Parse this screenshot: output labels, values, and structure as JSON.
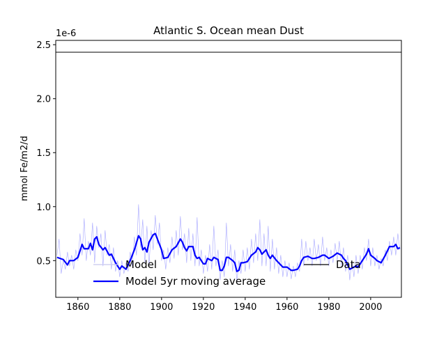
{
  "chart_data": {
    "type": "line",
    "title": "Atlantic S. Ocean  mean Dust",
    "y_label": "mmol Fe/m2/d",
    "y_offset_label": "1e-6",
    "xlim": [
      1849.4,
      2014.7
    ],
    "xticks": [
      1860,
      1880,
      1900,
      1920,
      1940,
      1960,
      1980,
      2000
    ],
    "ylim": [
      0.16,
      2.54
    ],
    "yticks": [
      0.5,
      {
        "value": 1.0,
        "label": "1.0"
      },
      1.5,
      {
        "value": 2.0,
        "label": "2.0"
      },
      2.5
    ],
    "legend": "lower center",
    "grid": false,
    "series": [
      {
        "name": "Model",
        "color": "#8080ff",
        "width": 0.6,
        "x": [
          1850,
          1851,
          1852,
          1853,
          1854,
          1855,
          1856,
          1857,
          1858,
          1859,
          1860,
          1861,
          1862,
          1863,
          1864,
          1865,
          1866,
          1867,
          1868,
          1869,
          1870,
          1871,
          1872,
          1873,
          1874,
          1875,
          1876,
          1877,
          1878,
          1879,
          1880,
          1881,
          1882,
          1883,
          1884,
          1885,
          1886,
          1887,
          1888,
          1889,
          1890,
          1891,
          1892,
          1893,
          1894,
          1895,
          1896,
          1897,
          1898,
          1899,
          1900,
          1901,
          1902,
          1903,
          1904,
          1905,
          1906,
          1907,
          1908,
          1909,
          1910,
          1911,
          1912,
          1913,
          1914,
          1915,
          1916,
          1917,
          1918,
          1919,
          1920,
          1921,
          1922,
          1923,
          1924,
          1925,
          1926,
          1927,
          1928,
          1929,
          1930,
          1931,
          1932,
          1933,
          1934,
          1935,
          1936,
          1937,
          1938,
          1939,
          1940,
          1941,
          1942,
          1943,
          1944,
          1945,
          1946,
          1947,
          1948,
          1949,
          1950,
          1951,
          1952,
          1953,
          1954,
          1955,
          1956,
          1957,
          1958,
          1959,
          1960,
          1961,
          1962,
          1963,
          1964,
          1965,
          1966,
          1967,
          1968,
          1969,
          1970,
          1971,
          1972,
          1973,
          1974,
          1975,
          1976,
          1977,
          1978,
          1979,
          1980,
          1981,
          1982,
          1983,
          1984,
          1985,
          1986,
          1987,
          1988,
          1989,
          1990,
          1991,
          1992,
          1993,
          1994,
          1995,
          1996,
          1997,
          1998,
          1999,
          2000,
          2001,
          2002,
          2003,
          2004,
          2005,
          2006,
          2007,
          2008,
          2009,
          2010,
          2011,
          2012,
          2013,
          2014
        ],
        "values": [
          0.55,
          0.7,
          0.38,
          0.5,
          0.42,
          0.58,
          0.45,
          0.55,
          0.42,
          0.6,
          0.5,
          0.75,
          0.55,
          0.89,
          0.5,
          0.68,
          0.55,
          0.85,
          0.48,
          0.82,
          0.62,
          0.75,
          0.45,
          0.78,
          0.55,
          0.65,
          0.42,
          0.62,
          0.4,
          0.5,
          0.35,
          0.5,
          0.38,
          0.48,
          0.4,
          0.58,
          0.45,
          0.72,
          0.55,
          1.02,
          0.62,
          0.88,
          0.48,
          0.82,
          0.45,
          0.78,
          0.6,
          0.92,
          0.65,
          0.85,
          0.5,
          0.6,
          0.42,
          0.62,
          0.48,
          0.72,
          0.52,
          0.78,
          0.55,
          0.91,
          0.6,
          0.75,
          0.48,
          0.8,
          0.5,
          0.75,
          0.45,
          0.9,
          0.45,
          0.6,
          0.38,
          0.55,
          0.4,
          0.65,
          0.42,
          0.82,
          0.45,
          0.6,
          0.32,
          0.5,
          0.35,
          0.85,
          0.45,
          0.65,
          0.4,
          0.6,
          0.3,
          0.5,
          0.38,
          0.6,
          0.4,
          0.62,
          0.42,
          0.7,
          0.48,
          0.75,
          0.5,
          0.88,
          0.45,
          0.75,
          0.45,
          0.82,
          0.4,
          0.7,
          0.42,
          0.62,
          0.38,
          0.55,
          0.35,
          0.5,
          0.35,
          0.48,
          0.33,
          0.45,
          0.35,
          0.48,
          0.4,
          0.7,
          0.45,
          0.68,
          0.5,
          0.62,
          0.45,
          0.7,
          0.5,
          0.65,
          0.45,
          0.72,
          0.5,
          0.62,
          0.45,
          0.6,
          0.48,
          0.66,
          0.5,
          0.68,
          0.45,
          0.62,
          0.4,
          0.55,
          0.32,
          0.5,
          0.35,
          0.55,
          0.38,
          0.55,
          0.42,
          0.62,
          0.5,
          0.7,
          0.45,
          0.62,
          0.45,
          0.55,
          0.42,
          0.52,
          0.45,
          0.6,
          0.5,
          0.68,
          0.55,
          0.72,
          0.55,
          0.75,
          0.6
        ]
      },
      {
        "name": "Model 5yr moving average",
        "color": "#0000ff",
        "width": 2.2,
        "x": [
          1850,
          1853,
          1855,
          1856,
          1858,
          1860,
          1862,
          1863,
          1865,
          1866,
          1867,
          1868,
          1869,
          1870,
          1872,
          1873,
          1875,
          1876,
          1878,
          1880,
          1881,
          1883,
          1885,
          1887,
          1889,
          1890,
          1891,
          1892,
          1893,
          1894,
          1896,
          1897,
          1898,
          1900,
          1901,
          1903,
          1905,
          1907,
          1909,
          1910,
          1911,
          1912,
          1913,
          1915,
          1916,
          1917,
          1918,
          1920,
          1921,
          1922,
          1924,
          1925,
          1927,
          1928,
          1929,
          1930,
          1931,
          1932,
          1934,
          1935,
          1936,
          1937,
          1938,
          1939,
          1941,
          1943,
          1945,
          1946,
          1947,
          1948,
          1949,
          1950,
          1951,
          1952,
          1953,
          1955,
          1956,
          1958,
          1960,
          1962,
          1963,
          1965,
          1966,
          1967,
          1968,
          1970,
          1972,
          1973,
          1975,
          1977,
          1978,
          1980,
          1982,
          1984,
          1986,
          1987,
          1988,
          1989,
          1990,
          1991,
          1993,
          1994,
          1996,
          1998,
          1999,
          2000,
          2002,
          2003,
          2005,
          2007,
          2009,
          2011,
          2012,
          2013,
          2014
        ],
        "values": [
          0.53,
          0.51,
          0.46,
          0.5,
          0.5,
          0.53,
          0.65,
          0.61,
          0.61,
          0.66,
          0.6,
          0.7,
          0.72,
          0.65,
          0.6,
          0.62,
          0.55,
          0.56,
          0.48,
          0.42,
          0.45,
          0.42,
          0.5,
          0.6,
          0.73,
          0.7,
          0.6,
          0.62,
          0.58,
          0.67,
          0.74,
          0.75,
          0.7,
          0.6,
          0.52,
          0.53,
          0.6,
          0.63,
          0.7,
          0.67,
          0.62,
          0.59,
          0.63,
          0.63,
          0.55,
          0.52,
          0.53,
          0.47,
          0.47,
          0.52,
          0.5,
          0.53,
          0.51,
          0.41,
          0.41,
          0.45,
          0.53,
          0.53,
          0.5,
          0.48,
          0.4,
          0.41,
          0.48,
          0.48,
          0.49,
          0.55,
          0.58,
          0.62,
          0.6,
          0.56,
          0.58,
          0.6,
          0.55,
          0.52,
          0.55,
          0.5,
          0.48,
          0.44,
          0.44,
          0.41,
          0.41,
          0.42,
          0.45,
          0.5,
          0.53,
          0.54,
          0.52,
          0.52,
          0.53,
          0.55,
          0.55,
          0.52,
          0.54,
          0.57,
          0.55,
          0.52,
          0.5,
          0.46,
          0.42,
          0.43,
          0.45,
          0.44,
          0.5,
          0.56,
          0.61,
          0.55,
          0.52,
          0.5,
          0.48,
          0.55,
          0.63,
          0.63,
          0.65,
          0.61,
          0.62
        ]
      },
      {
        "name": "Data",
        "color": "#000000",
        "width": 1,
        "x": [
          1849.4,
          2014.7
        ],
        "values": [
          2.43,
          2.43
        ]
      }
    ]
  }
}
